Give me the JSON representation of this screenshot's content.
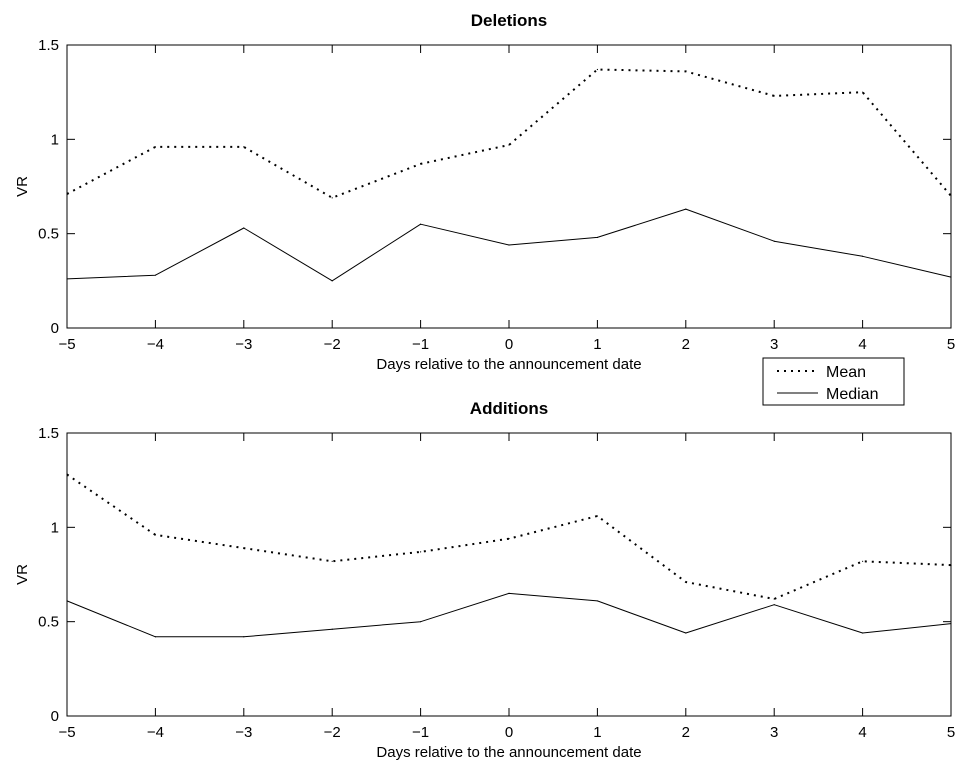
{
  "legend": {
    "entries": [
      {
        "label": "Mean",
        "style": "dotted"
      },
      {
        "label": "Median",
        "style": "solid"
      }
    ],
    "placement": "between panels, right"
  },
  "colors": {
    "line": "#000000",
    "axes": "#000000",
    "background": "#ffffff"
  },
  "chart_data": [
    {
      "type": "line",
      "title": "Deletions",
      "xlabel": "Days relative to the announcement date",
      "ylabel": "VR",
      "xlim": [
        -5,
        5
      ],
      "ylim": [
        0,
        1.5
      ],
      "x_ticks": [
        -5,
        -4,
        -3,
        -2,
        -1,
        0,
        1,
        2,
        3,
        4,
        5
      ],
      "x_tick_labels": [
        "−5",
        "−4",
        "−3",
        "−2",
        "−1",
        "0",
        "1",
        "2",
        "3",
        "4",
        "5"
      ],
      "y_ticks": [
        0,
        0.5,
        1,
        1.5
      ],
      "y_tick_labels": [
        "0",
        "0.5",
        "1",
        "1.5"
      ],
      "grid": false,
      "x": [
        -5,
        -4,
        -3,
        -2,
        -1,
        0,
        1,
        2,
        3,
        4,
        5
      ],
      "series": [
        {
          "name": "Mean",
          "style": "dotted",
          "values": [
            0.71,
            0.96,
            0.96,
            0.69,
            0.87,
            0.97,
            1.37,
            1.36,
            1.23,
            1.25,
            0.7
          ]
        },
        {
          "name": "Median",
          "style": "solid",
          "values": [
            0.26,
            0.28,
            0.53,
            0.25,
            0.55,
            0.44,
            0.48,
            0.63,
            0.46,
            0.38,
            0.27
          ]
        }
      ]
    },
    {
      "type": "line",
      "title": "Additions",
      "xlabel": "Days relative to the announcement date",
      "ylabel": "VR",
      "xlim": [
        -5,
        5
      ],
      "ylim": [
        0,
        1.5
      ],
      "x_ticks": [
        -5,
        -4,
        -3,
        -2,
        -1,
        0,
        1,
        2,
        3,
        4,
        5
      ],
      "x_tick_labels": [
        "−5",
        "−4",
        "−3",
        "−2",
        "−1",
        "0",
        "1",
        "2",
        "3",
        "4",
        "5"
      ],
      "y_ticks": [
        0,
        0.5,
        1,
        1.5
      ],
      "y_tick_labels": [
        "0",
        "0.5",
        "1",
        "1.5"
      ],
      "grid": false,
      "x": [
        -5,
        -4,
        -3,
        -2,
        -1,
        0,
        1,
        2,
        3,
        4,
        5
      ],
      "series": [
        {
          "name": "Mean",
          "style": "dotted",
          "values": [
            1.28,
            0.96,
            0.89,
            0.82,
            0.87,
            0.94,
            1.06,
            0.71,
            0.62,
            0.82,
            0.8
          ]
        },
        {
          "name": "Median",
          "style": "solid",
          "values": [
            0.61,
            0.42,
            0.42,
            0.46,
            0.5,
            0.65,
            0.61,
            0.44,
            0.59,
            0.44,
            0.49
          ]
        }
      ]
    }
  ]
}
